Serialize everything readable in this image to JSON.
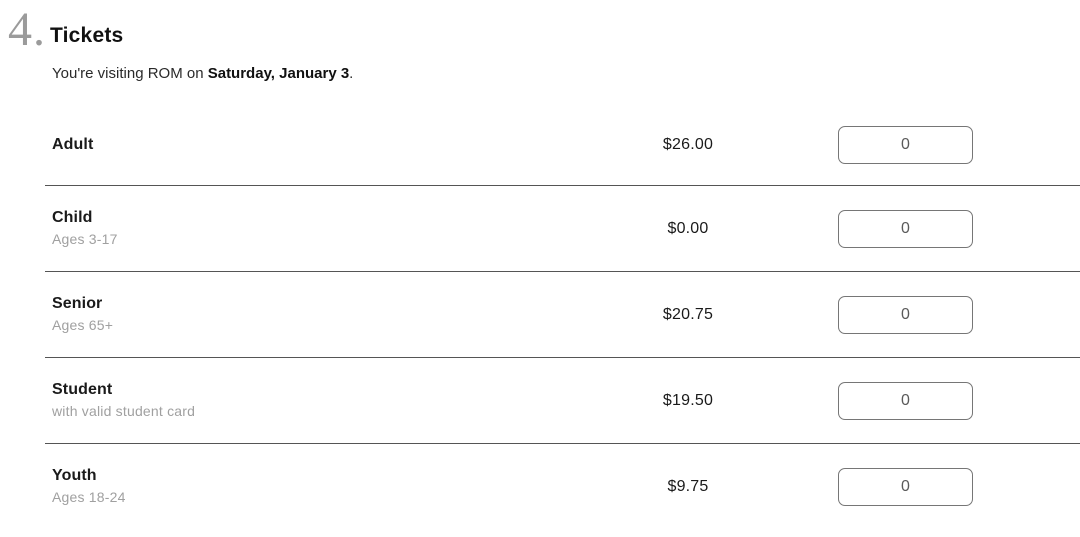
{
  "header": {
    "step_number": "4.",
    "title": "Tickets",
    "subtitle_prefix": "You're visiting ROM on ",
    "subtitle_date": "Saturday, January 3",
    "subtitle_suffix": "."
  },
  "tickets": {
    "rows": [
      {
        "label": "Adult",
        "sublabel": "",
        "price": "$26.00",
        "quantity": "0"
      },
      {
        "label": "Child",
        "sublabel": "Ages 3-17",
        "price": "$0.00",
        "quantity": "0"
      },
      {
        "label": "Senior",
        "sublabel": "Ages 65+",
        "price": "$20.75",
        "quantity": "0"
      },
      {
        "label": "Student",
        "sublabel": "with valid student card",
        "price": "$19.50",
        "quantity": "0"
      },
      {
        "label": "Youth",
        "sublabel": "Ages 18-24",
        "price": "$9.75",
        "quantity": "0"
      }
    ]
  },
  "colors": {
    "step_number": "#9b9b9b",
    "text_primary": "#1a1a1a",
    "text_secondary": "#a0a0a0",
    "divider": "#555555",
    "input_border": "#767676",
    "input_text": "#5a5a5a"
  }
}
